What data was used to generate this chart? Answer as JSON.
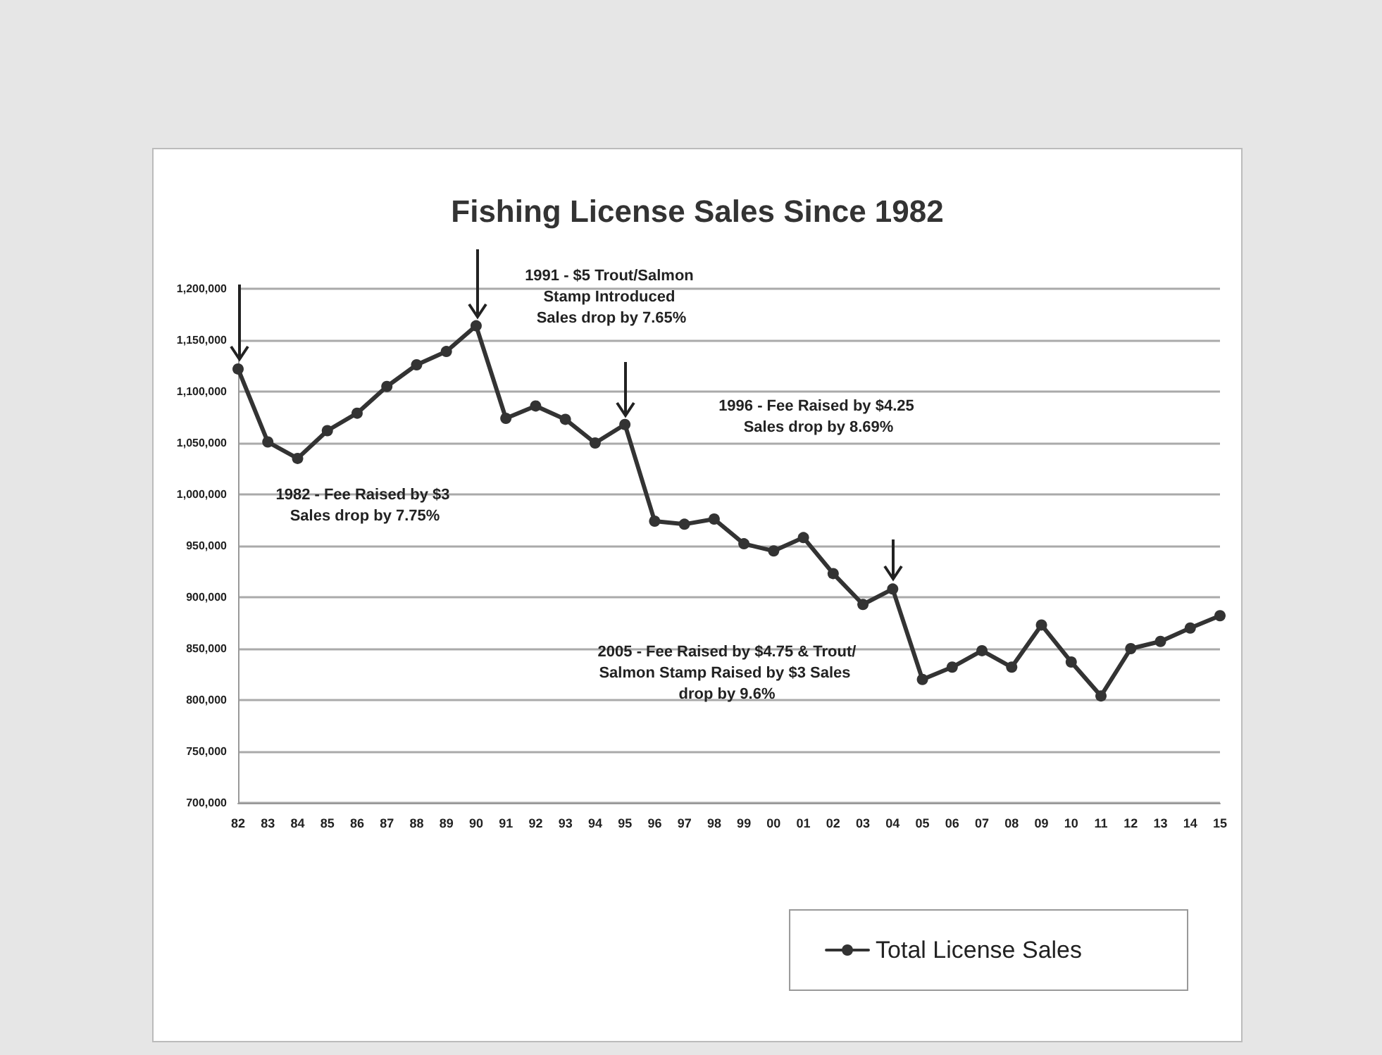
{
  "chart_data": {
    "type": "line",
    "title": "Fishing License Sales Since 1982",
    "categories": [
      "82",
      "83",
      "84",
      "85",
      "86",
      "87",
      "88",
      "89",
      "90",
      "91",
      "92",
      "93",
      "94",
      "95",
      "96",
      "97",
      "98",
      "99",
      "00",
      "01",
      "02",
      "03",
      "04",
      "05",
      "06",
      "07",
      "08",
      "09",
      "10",
      "11",
      "12",
      "13",
      "14",
      "15"
    ],
    "series": [
      {
        "name": "Total License Sales",
        "color": "#333333",
        "values": [
          1122000,
          1051000,
          1035000,
          1062000,
          1079000,
          1105000,
          1126000,
          1139000,
          1164000,
          1074000,
          1086000,
          1073000,
          1050000,
          1068000,
          974000,
          971000,
          976000,
          952000,
          945000,
          958000,
          923000,
          893000,
          908000,
          820000,
          832000,
          848000,
          832000,
          873000,
          837000,
          804000,
          850000,
          857000,
          870000,
          882000
        ]
      }
    ],
    "ylim": [
      700000,
      1200000
    ],
    "yticks": [
      {
        "value": 700000,
        "label": "700,000"
      },
      {
        "value": 750000,
        "label": "750,000"
      },
      {
        "value": 800000,
        "label": "800,000"
      },
      {
        "value": 850000,
        "label": "850,000"
      },
      {
        "value": 900000,
        "label": "900,000"
      },
      {
        "value": 950000,
        "label": "950,000"
      },
      {
        "value": 1000000,
        "label": "1,000,000"
      },
      {
        "value": 1050000,
        "label": "1,050,000"
      },
      {
        "value": 1100000,
        "label": "1,100,000"
      },
      {
        "value": 1150000,
        "label": "1,150,000"
      },
      {
        "value": 1200000,
        "label": "1,200,000"
      }
    ],
    "annotations": [
      "1982 - Fee Raised by $3 Sales drop by 7.75%",
      "1991 - $5 Trout/Salmon Stamp Introduced Sales drop by 7.65%",
      "1996 - Fee Raised by $4.25 Sales drop by 8.69%",
      "2005 - Fee Raised by $4.75 & Trout/Salmon Stamp Raised by $3 Sales drop by 9.6%"
    ],
    "grid": "y",
    "legend": "bottom right",
    "marker": "circle",
    "line_style": "solid"
  }
}
